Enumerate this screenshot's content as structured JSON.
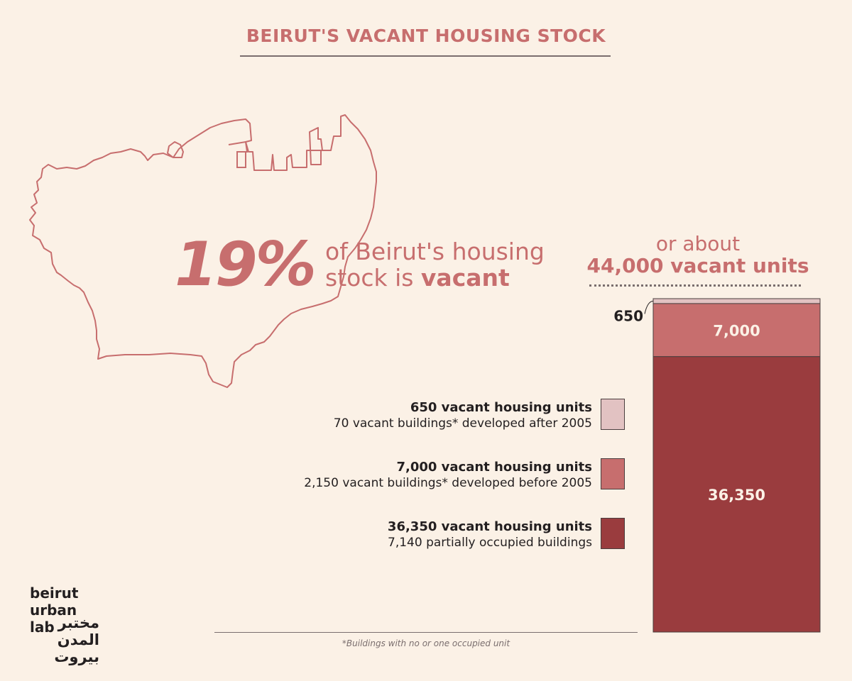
{
  "title": "BEIRUT'S VACANT HOUSING STOCK",
  "headline": {
    "percent": "19%",
    "text_line1": "of Beirut's housing",
    "text_line2_prefix": "stock is ",
    "text_line2_bold": "vacant"
  },
  "about": {
    "line1": "or about",
    "line2": "44,000 vacant units"
  },
  "legend": [
    {
      "title": "650 vacant housing units",
      "subtitle": "70 vacant buildings* developed after 2005",
      "color": "#e2c2c2"
    },
    {
      "title": "7,000 vacant housing units",
      "subtitle": "2,150 vacant buildings* developed before 2005",
      "color": "#c76e6e"
    },
    {
      "title": "36,350 vacant housing units",
      "subtitle": "7,140 partially occupied buildings",
      "color": "#9a3c3e"
    }
  ],
  "footnote": "*Buildings with no or one occupied unit",
  "logo": {
    "en": [
      "beirut",
      "urban",
      "lab"
    ],
    "ar": [
      "مختبر",
      "المدن",
      "بيروت"
    ]
  },
  "chart_data": {
    "type": "bar",
    "stacked": true,
    "categories": [
      ""
    ],
    "series": [
      {
        "values": [
          650
        ],
        "label": "650",
        "color": "#e2c2c2"
      },
      {
        "values": [
          7000
        ],
        "label": "7,000",
        "color": "#c76e6e"
      },
      {
        "values": [
          36350
        ],
        "label": "36,350",
        "color": "#9a3c3e"
      }
    ],
    "ylim": [
      0,
      44000
    ],
    "legend": "left"
  },
  "colors": {
    "background": "#fbf1e6",
    "accent": "#c76e6e",
    "dark_red": "#9a3c3e",
    "light_pink": "#e2c2c2",
    "text": "#231f20"
  }
}
